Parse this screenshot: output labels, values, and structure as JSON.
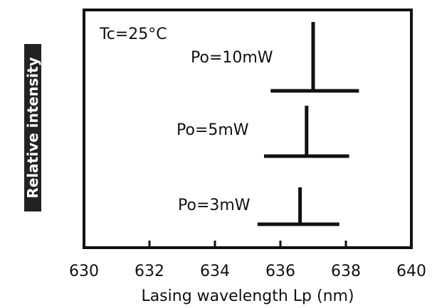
{
  "chart_data": {
    "type": "line",
    "title": "",
    "xlabel": "Lasing  wavelength  Lp  (nm)",
    "ylabel": "Relative intensity",
    "xlim": [
      630,
      640
    ],
    "xticks": [
      "630",
      "632",
      "634",
      "636",
      "638",
      "640"
    ],
    "grid": false,
    "annotation": "Tc=25°C",
    "series": [
      {
        "name": "Po=10mW",
        "peak_nm": 637.0,
        "base_range_nm": [
          635.7,
          638.4
        ]
      },
      {
        "name": "Po=5mW",
        "peak_nm": 636.8,
        "base_range_nm": [
          635.5,
          638.1
        ]
      },
      {
        "name": "Po=3mW",
        "peak_nm": 636.6,
        "base_range_nm": [
          635.3,
          637.8
        ]
      }
    ]
  }
}
